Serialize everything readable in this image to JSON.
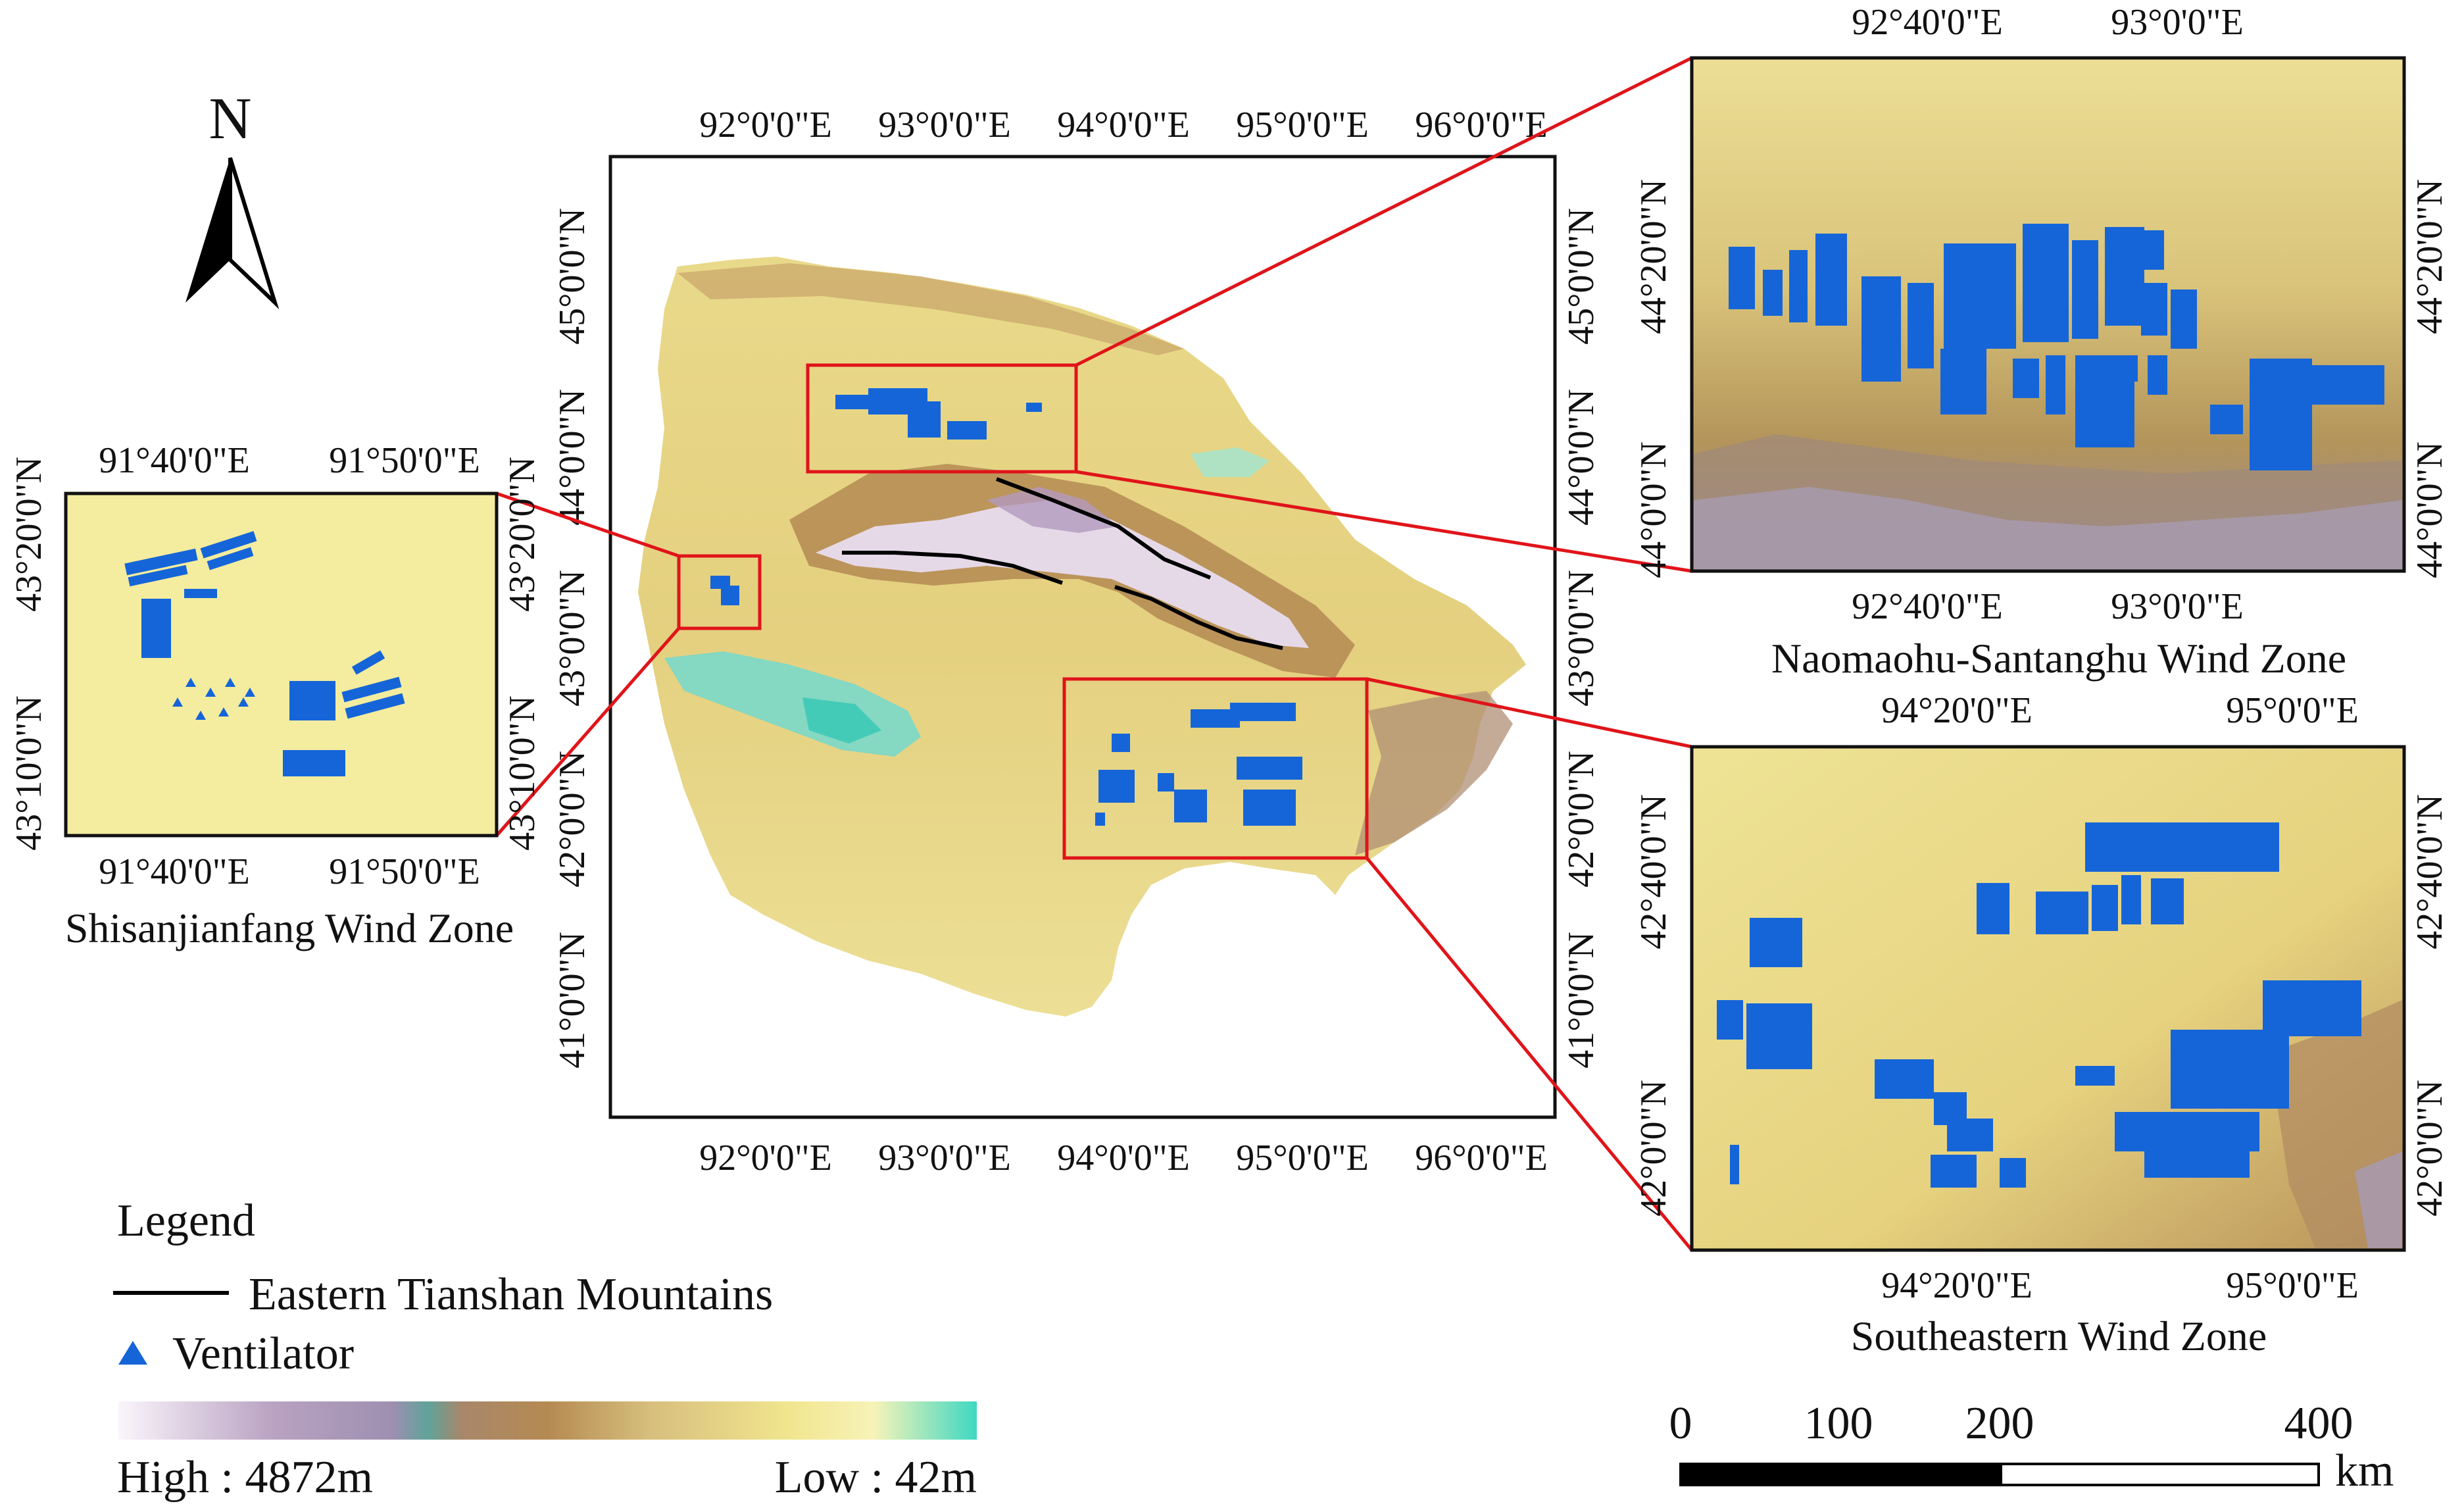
{
  "north_arrow": {
    "letter": "N"
  },
  "main_map": {
    "top_ticks": [
      "92°0'0\"E",
      "93°0'0\"E",
      "94°0'0\"E",
      "95°0'0\"E",
      "96°0'0\"E"
    ],
    "bottom_ticks": [
      "92°0'0\"E",
      "93°0'0\"E",
      "94°0'0\"E",
      "95°0'0\"E",
      "96°0'0\"E"
    ],
    "left_ticks": [
      "45°0'0\"N",
      "44°0'0\"N",
      "43°0'0\"N",
      "42°0'0\"N",
      "41°0'0\"N"
    ],
    "right_ticks": [
      "45°0'0\"N",
      "44°0'0\"N",
      "43°0'0\"N",
      "42°0'0\"N",
      "41°0'0\"N"
    ]
  },
  "inset_shisanjianfang": {
    "title": "Shisanjianfang Wind Zone",
    "top_ticks": [
      "91°40'0\"E",
      "91°50'0\"E"
    ],
    "bottom_ticks": [
      "91°40'0\"E",
      "91°50'0\"E"
    ],
    "left_ticks": [
      "43°20'0\"N",
      "43°10'0\"N"
    ],
    "right_ticks": [
      "43°20'0\"N",
      "43°10'0\"N"
    ]
  },
  "inset_naomaohu": {
    "title": "Naomaohu-Santanghu Wind Zone",
    "top_ticks": [
      "92°40'0\"E",
      "93°0'0\"E"
    ],
    "bottom_ticks": [
      "92°40'0\"E",
      "93°0'0\"E"
    ],
    "left_ticks": [
      "44°20'0\"N",
      "44°0'0\"N"
    ],
    "right_ticks": [
      "44°20'0\"N",
      "44°0'0\"N"
    ]
  },
  "inset_southeastern": {
    "title": "Southeastern Wind Zone",
    "top_ticks": [
      "94°20'0\"E",
      "95°0'0\"E"
    ],
    "bottom_ticks": [
      "94°20'0\"E",
      "95°0'0\"E"
    ],
    "left_ticks": [
      "42°40'0\"N",
      "42°0'0\"N"
    ],
    "right_ticks": [
      "42°40'0\"N",
      "42°0'0\"N"
    ]
  },
  "legend": {
    "title": "Legend",
    "mountains_label": "Eastern Tianshan Mountains",
    "ventilator_label": "Ventilator",
    "high_label": "High : 4872m",
    "low_label": "Low : 42m"
  },
  "scale_bar": {
    "labels": [
      "0",
      "100",
      "200",
      "400"
    ],
    "unit": "km"
  },
  "colors": {
    "frame": "#111111",
    "inset_box": "#e0141a",
    "ventilator": "#1565d8",
    "mountain_line": "#000000"
  }
}
